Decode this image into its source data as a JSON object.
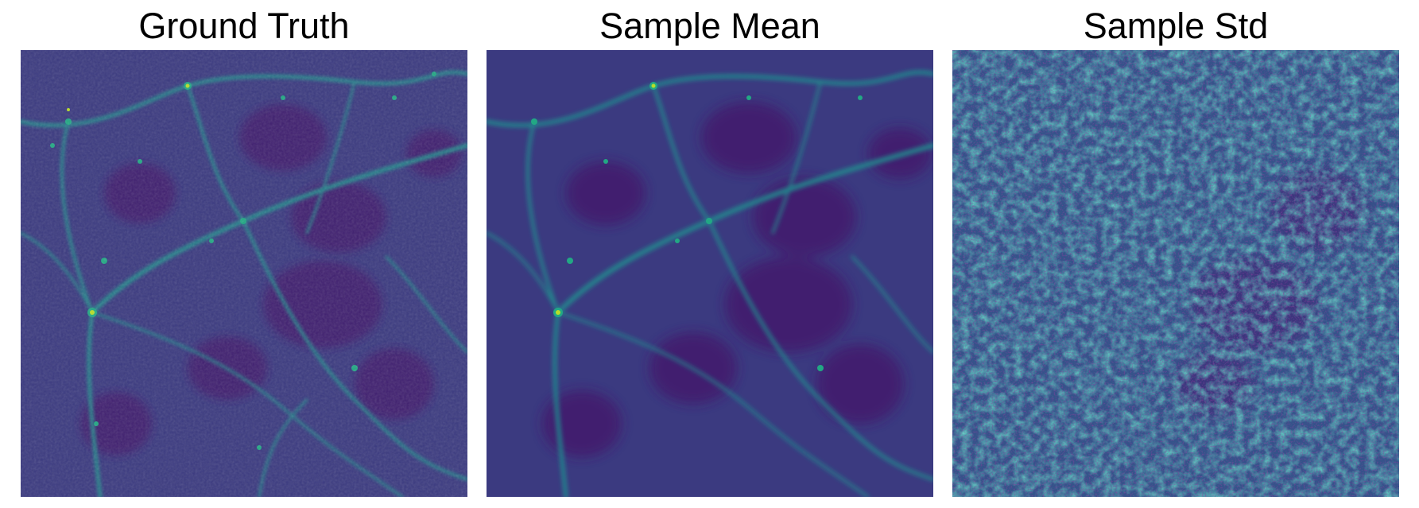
{
  "panels": [
    {
      "title": "Ground Truth",
      "image": "cosmic-web-density-field"
    },
    {
      "title": "Sample Mean",
      "image": "cosmic-web-density-field-smoothed"
    },
    {
      "title": "Sample Std",
      "image": "cosmic-web-noise-field"
    }
  ],
  "colormap": [
    "#440154",
    "#472d7b",
    "#3b528b",
    "#2c728e",
    "#21918c",
    "#28ae80",
    "#5ec962",
    "#addc30",
    "#fde725"
  ]
}
